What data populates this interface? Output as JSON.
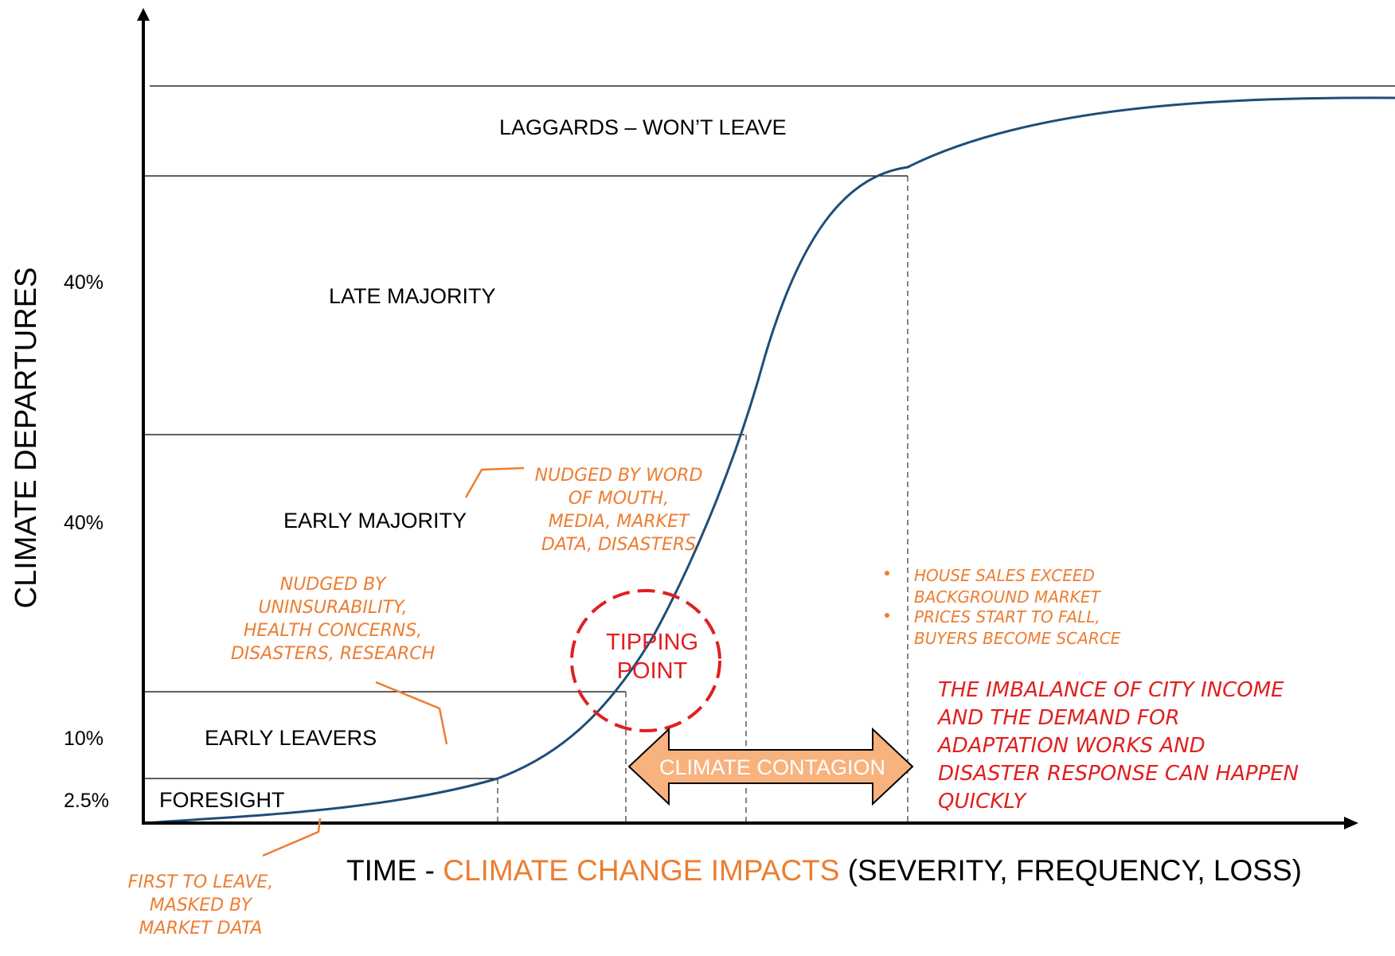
{
  "axes": {
    "y_title": "CLIMATE DEPARTURES",
    "x_title_prefix": "TIME - ",
    "x_title_highlight": "CLIMATE CHANGE IMPACTS",
    "x_title_suffix": " (SEVERITY, FREQUENCY, LOSS)",
    "y_ticks": [
      "40%",
      "40%",
      "10%",
      "2.5%"
    ]
  },
  "segments": [
    {
      "label": "LAGGARDS – WON’T LEAVE"
    },
    {
      "label": "LATE MAJORITY"
    },
    {
      "label": "EARLY MAJORITY"
    },
    {
      "label": "EARLY LEAVERS"
    },
    {
      "label": "FORESIGHT"
    }
  ],
  "annotations": {
    "first_to_leave": [
      "FIRST TO LEAVE,",
      "MASKED BY",
      "MARKET DATA"
    ],
    "nudged_uninsurability": [
      "NUDGED BY",
      "UNINSURABILITY,",
      "HEALTH CONCERNS,",
      "DISASTERS, RESEARCH"
    ],
    "nudged_word_of_mouth": [
      "NUDGED BY WORD",
      "OF MOUTH,",
      "MEDIA, MARKET",
      "DATA, DISASTERS"
    ],
    "tipping_point": [
      "TIPPING",
      "POINT"
    ],
    "climate_contagion": "CLIMATE CONTAGION",
    "bullets": [
      "HOUSE SALES EXCEED",
      "BACKGROUND MARKET",
      "PRICES START TO FALL,",
      "BUYERS BECOME SCARCE"
    ],
    "imbalance": [
      "THE IMBALANCE OF CITY INCOME",
      "AND THE DEMAND FOR",
      "ADAPTATION WORKS AND",
      "DISASTER RESPONSE CAN HAPPEN",
      "QUICKLY"
    ]
  },
  "colors": {
    "curve": "#1f4e79",
    "axis": "#000000",
    "orange": "#ed7d31",
    "red": "#e02020",
    "arrow_fill": "#f8b27e"
  }
}
